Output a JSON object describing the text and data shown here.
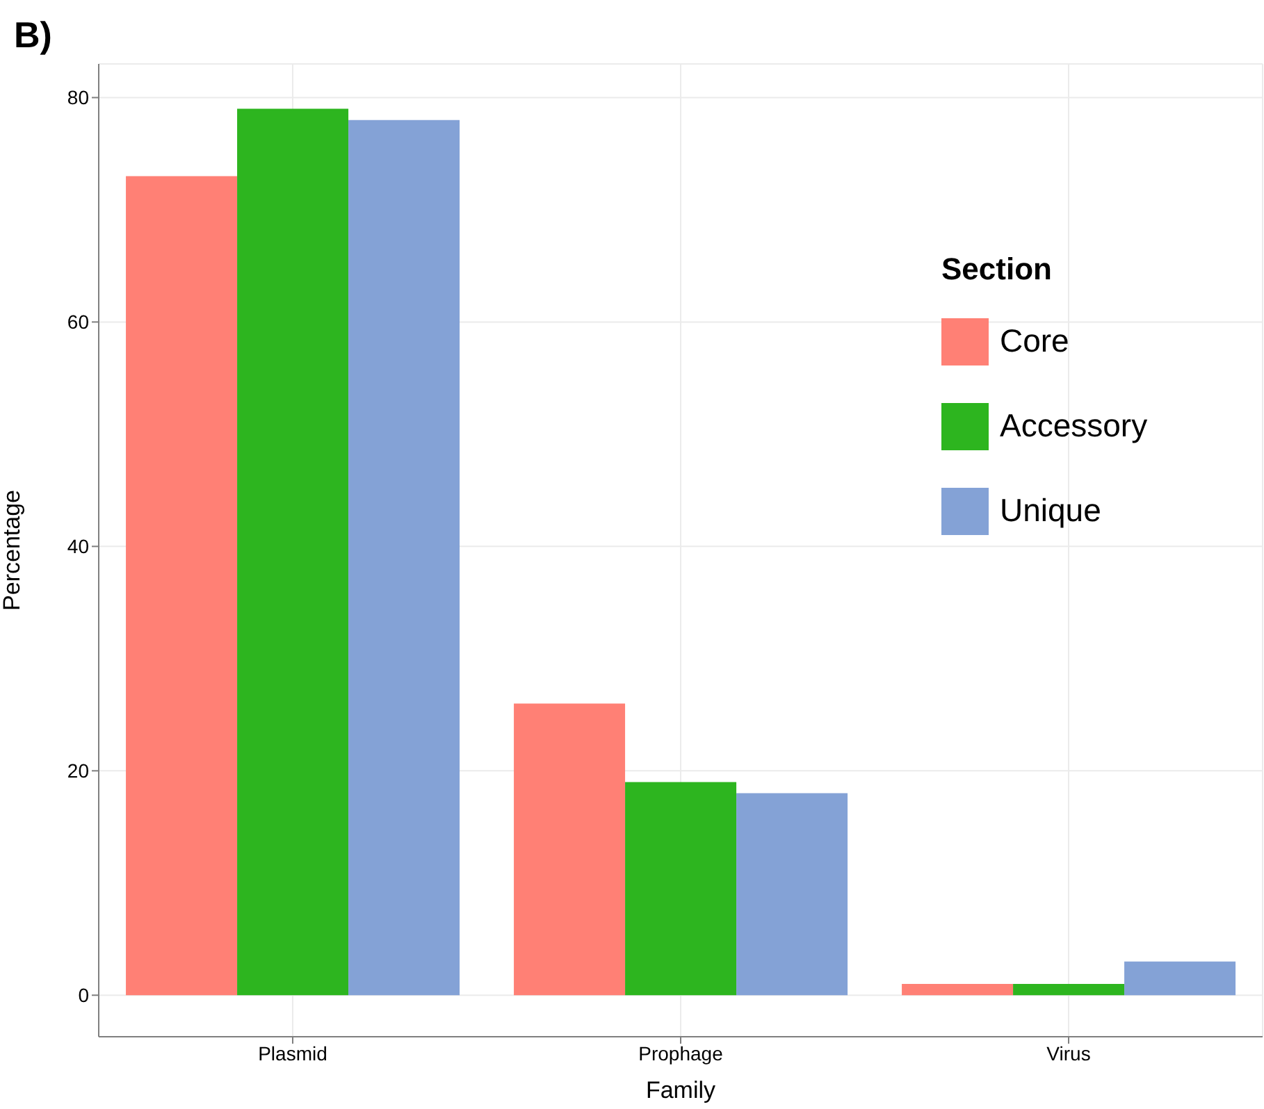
{
  "chart_data": {
    "type": "bar",
    "title": "B)",
    "xlabel": "Family",
    "ylabel": "Percentage",
    "legend_title": "Section",
    "categories": [
      "Plasmid",
      "Prophage",
      "Virus"
    ],
    "series": [
      {
        "name": "Core",
        "color": "#ff8075",
        "values": [
          73,
          26,
          1
        ]
      },
      {
        "name": "Accessory",
        "color": "#2db51f",
        "values": [
          79,
          19,
          1
        ]
      },
      {
        "name": "Unique",
        "color": "#84a2d6",
        "values": [
          78,
          18,
          3
        ]
      }
    ],
    "ylim": [
      -3.7,
      83
    ],
    "yticks": [
      0,
      20,
      40,
      60,
      80
    ],
    "grid": true,
    "legend": "right"
  }
}
